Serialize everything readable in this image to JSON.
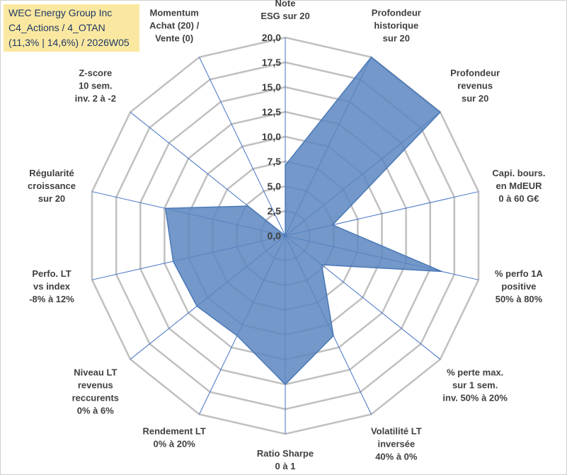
{
  "title": {
    "line1": "WEC Energy Group Inc",
    "line2": "C4_Actions / 4_OTAN",
    "line3": "(11,3% | 14,6%) / 2026W05"
  },
  "colors": {
    "fill": "#5b86c0",
    "stroke": "#4a78b8",
    "grid": "#c0c0c0",
    "spoke": "#4472c4",
    "title_bg": "#fbe8a0"
  },
  "chart_data": {
    "type": "radar",
    "rmin": 0,
    "rmax": 20,
    "ticks": [
      "0,0",
      "2,5",
      "5,0",
      "7,5",
      "10,0",
      "12,5",
      "15,0",
      "17,5",
      "20,0"
    ],
    "axes": [
      {
        "lines": [
          "Note",
          "ESG sur 20"
        ],
        "value": 7.1
      },
      {
        "lines": [
          "Profondeur",
          "historique",
          "sur 20"
        ],
        "value": 20.0
      },
      {
        "lines": [
          "Profondeur",
          "revenus",
          "sur 20"
        ],
        "value": 20.0
      },
      {
        "lines": [
          "Capi. bours.",
          "en MdEUR",
          "0 à 60 G€"
        ],
        "value": 4.9
      },
      {
        "lines": [
          "% perfo 1A",
          "positive",
          "50% à 80%"
        ],
        "value": 16.2
      },
      {
        "lines": [
          "% perte max.",
          "sur 1 sem.",
          "inv. 50% à 20%"
        ],
        "value": 4.7
      },
      {
        "lines": [
          "Volatilité LT",
          "inversée",
          "40% à 0%"
        ],
        "value": 11.2
      },
      {
        "lines": [
          "Ratio Sharpe",
          "0 à 1"
        ],
        "value": 15.0
      },
      {
        "lines": [
          "Rendement LT",
          "0% à 20%"
        ],
        "value": 11.2
      },
      {
        "lines": [
          "Niveau LT",
          "revenus",
          "reccurents",
          "0% à 6%"
        ],
        "value": 11.4
      },
      {
        "lines": [
          "Perfo. LT",
          "vs index",
          "-8% à 12%"
        ],
        "value": 11.6
      },
      {
        "lines": [
          "Régularité",
          "croissance",
          "sur 20"
        ],
        "value": 12.4
      },
      {
        "lines": [
          "Z-score",
          "10 sem.",
          "inv. 2 à -2"
        ],
        "value": 4.8
      },
      {
        "lines": [
          "Momentum",
          "Achat (20) /",
          "Vente (0)"
        ],
        "value": 0.0
      }
    ]
  }
}
